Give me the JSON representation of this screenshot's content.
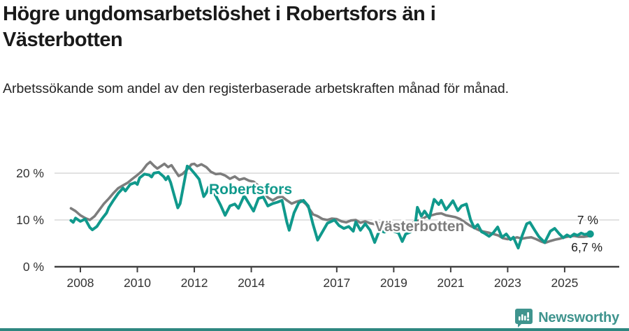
{
  "header": {
    "title": "Högre ungdomsarbetslöshet i Robertsfors än i Västerbotten",
    "subtitle": "Arbetssökande som andel av den registerbaserade arbetskraften månad för månad."
  },
  "footer": {
    "brand": "Newsworthy"
  },
  "colors": {
    "robertsfors": "#10998c",
    "vasterbotten": "#7d7d7d",
    "gridline": "#d9d9d9",
    "axis": "#404040",
    "tick_text": "#333333",
    "end_label_text": "#1a1a1a",
    "brand_teal": "#3f948e",
    "bottom_bar": "#2e8680"
  },
  "chart_data": {
    "type": "line",
    "title": "Högre ungdomsarbetslöshet i Robertsfors än i Västerbotten",
    "xlabel": "",
    "ylabel": "Arbetssökande som andel av den registerbaserade arbetskraften",
    "grid": "horizontal",
    "legend_position": "inline-labels",
    "xlim": [
      2007.5,
      2026.1
    ],
    "ylim": [
      0,
      24
    ],
    "x_ticks": [
      {
        "value": 2008,
        "label": "2008"
      },
      {
        "value": 2010,
        "label": "2010"
      },
      {
        "value": 2012,
        "label": "2012"
      },
      {
        "value": 2014,
        "label": "2014"
      },
      {
        "value": 2017,
        "label": "2017"
      },
      {
        "value": 2019,
        "label": "2019"
      },
      {
        "value": 2021,
        "label": "2021"
      },
      {
        "value": 2023,
        "label": "2023"
      },
      {
        "value": 2025,
        "label": "2025"
      }
    ],
    "y_ticks": [
      {
        "value": 0,
        "label": "0 %"
      },
      {
        "value": 10,
        "label": "10 %"
      },
      {
        "value": 20,
        "label": "20 %"
      }
    ],
    "series": [
      {
        "name": "Västerbotten",
        "color": "#7d7d7d",
        "end_label": "6,7 %",
        "end_value": 6.7,
        "end_dot": false,
        "points": [
          [
            2007.67,
            12.5
          ],
          [
            2007.83,
            11.9
          ],
          [
            2008.0,
            11.0
          ],
          [
            2008.17,
            10.4
          ],
          [
            2008.33,
            10.0
          ],
          [
            2008.5,
            10.8
          ],
          [
            2008.67,
            12.2
          ],
          [
            2008.83,
            13.5
          ],
          [
            2009.0,
            14.6
          ],
          [
            2009.17,
            15.8
          ],
          [
            2009.33,
            16.8
          ],
          [
            2009.5,
            17.4
          ],
          [
            2009.67,
            18.0
          ],
          [
            2009.83,
            18.8
          ],
          [
            2010.0,
            19.6
          ],
          [
            2010.17,
            20.5
          ],
          [
            2010.33,
            21.8
          ],
          [
            2010.45,
            22.4
          ],
          [
            2010.58,
            21.6
          ],
          [
            2010.7,
            21.0
          ],
          [
            2010.83,
            21.5
          ],
          [
            2010.95,
            22.0
          ],
          [
            2011.08,
            21.3
          ],
          [
            2011.2,
            21.7
          ],
          [
            2011.33,
            20.5
          ],
          [
            2011.45,
            19.4
          ],
          [
            2011.58,
            19.8
          ],
          [
            2011.75,
            20.8
          ],
          [
            2011.9,
            21.9
          ],
          [
            2012.0,
            22.0
          ],
          [
            2012.1,
            21.5
          ],
          [
            2012.25,
            21.9
          ],
          [
            2012.42,
            21.3
          ],
          [
            2012.58,
            20.3
          ],
          [
            2012.75,
            19.8
          ],
          [
            2012.92,
            19.9
          ],
          [
            2013.08,
            19.5
          ],
          [
            2013.25,
            18.8
          ],
          [
            2013.42,
            19.3
          ],
          [
            2013.58,
            18.6
          ],
          [
            2013.75,
            18.9
          ],
          [
            2013.92,
            18.4
          ],
          [
            2014.08,
            18.2
          ],
          [
            2014.25,
            17.3
          ],
          [
            2014.42,
            16.0
          ],
          [
            2014.58,
            14.8
          ],
          [
            2014.75,
            14.2
          ],
          [
            2014.92,
            14.8
          ],
          [
            2015.08,
            15.0
          ],
          [
            2015.25,
            14.2
          ],
          [
            2015.42,
            13.5
          ],
          [
            2015.58,
            13.9
          ],
          [
            2015.75,
            14.2
          ],
          [
            2015.92,
            13.4
          ],
          [
            2016.08,
            12.0
          ],
          [
            2016.17,
            11.2
          ],
          [
            2016.33,
            10.8
          ],
          [
            2016.5,
            10.2
          ],
          [
            2016.67,
            10.0
          ],
          [
            2016.83,
            10.3
          ],
          [
            2017.0,
            10.2
          ],
          [
            2017.17,
            9.7
          ],
          [
            2017.33,
            9.5
          ],
          [
            2017.5,
            9.9
          ],
          [
            2017.67,
            10.0
          ],
          [
            2017.83,
            9.4
          ],
          [
            2018.0,
            9.7
          ],
          [
            2018.17,
            9.3
          ],
          [
            2018.33,
            9.1
          ],
          [
            2018.5,
            9.3
          ],
          [
            2018.67,
            9.2
          ],
          [
            2018.83,
            9.4
          ],
          [
            2019.0,
            9.2
          ],
          [
            2019.17,
            9.1
          ],
          [
            2019.33,
            9.3
          ],
          [
            2019.5,
            9.2
          ],
          [
            2019.67,
            9.4
          ],
          [
            2019.83,
            9.8
          ],
          [
            2020.0,
            10.2
          ],
          [
            2020.17,
            10.8
          ],
          [
            2020.33,
            11.0
          ],
          [
            2020.5,
            11.3
          ],
          [
            2020.67,
            11.4
          ],
          [
            2020.83,
            11.0
          ],
          [
            2021.0,
            10.8
          ],
          [
            2021.17,
            10.6
          ],
          [
            2021.33,
            10.2
          ],
          [
            2021.5,
            9.5
          ],
          [
            2021.67,
            8.8
          ],
          [
            2021.83,
            8.3
          ],
          [
            2022.0,
            7.8
          ],
          [
            2022.17,
            7.5
          ],
          [
            2022.33,
            7.3
          ],
          [
            2022.5,
            7.0
          ],
          [
            2022.67,
            6.7
          ],
          [
            2022.83,
            6.1
          ],
          [
            2023.0,
            5.9
          ],
          [
            2023.17,
            6.0
          ],
          [
            2023.33,
            6.3
          ],
          [
            2023.5,
            6.0
          ],
          [
            2023.67,
            6.2
          ],
          [
            2023.83,
            6.3
          ],
          [
            2024.0,
            5.9
          ],
          [
            2024.17,
            5.4
          ],
          [
            2024.31,
            5.1
          ],
          [
            2024.5,
            5.5
          ],
          [
            2024.67,
            5.8
          ],
          [
            2024.83,
            6.0
          ],
          [
            2025.0,
            6.3
          ],
          [
            2025.17,
            6.5
          ],
          [
            2025.33,
            6.6
          ],
          [
            2025.5,
            6.4
          ],
          [
            2025.67,
            6.4
          ],
          [
            2025.8,
            6.5
          ],
          [
            2025.9,
            6.7
          ]
        ]
      },
      {
        "name": "Robertsfors",
        "color": "#10998c",
        "end_label": "7 %",
        "end_value": 7,
        "end_dot": true,
        "points": [
          [
            2007.67,
            9.9
          ],
          [
            2007.75,
            9.5
          ],
          [
            2007.83,
            10.4
          ],
          [
            2008.0,
            9.7
          ],
          [
            2008.17,
            10.2
          ],
          [
            2008.33,
            8.4
          ],
          [
            2008.42,
            7.9
          ],
          [
            2008.58,
            8.6
          ],
          [
            2008.75,
            10.2
          ],
          [
            2008.92,
            11.5
          ],
          [
            2009.0,
            12.7
          ],
          [
            2009.17,
            14.3
          ],
          [
            2009.33,
            15.7
          ],
          [
            2009.5,
            16.8
          ],
          [
            2009.58,
            16.2
          ],
          [
            2009.75,
            17.6
          ],
          [
            2009.92,
            18.0
          ],
          [
            2010.0,
            17.6
          ],
          [
            2010.08,
            19.0
          ],
          [
            2010.25,
            19.8
          ],
          [
            2010.42,
            19.6
          ],
          [
            2010.5,
            19.2
          ],
          [
            2010.58,
            20.0
          ],
          [
            2010.75,
            20.2
          ],
          [
            2010.92,
            19.3
          ],
          [
            2011.0,
            18.6
          ],
          [
            2011.08,
            19.3
          ],
          [
            2011.17,
            18.0
          ],
          [
            2011.33,
            14.5
          ],
          [
            2011.42,
            12.6
          ],
          [
            2011.5,
            13.5
          ],
          [
            2011.58,
            16.0
          ],
          [
            2011.75,
            21.5
          ],
          [
            2011.83,
            21.2
          ],
          [
            2012.0,
            20.0
          ],
          [
            2012.17,
            18.7
          ],
          [
            2012.33,
            15.0
          ],
          [
            2012.42,
            15.8
          ],
          [
            2012.5,
            17.0
          ],
          [
            2012.58,
            16.4
          ],
          [
            2012.75,
            15.2
          ],
          [
            2012.92,
            13.2
          ],
          [
            2013.08,
            11.0
          ],
          [
            2013.25,
            13.0
          ],
          [
            2013.42,
            13.4
          ],
          [
            2013.55,
            12.5
          ],
          [
            2013.75,
            15.2
          ],
          [
            2013.92,
            13.5
          ],
          [
            2014.08,
            11.9
          ],
          [
            2014.25,
            14.6
          ],
          [
            2014.42,
            14.9
          ],
          [
            2014.58,
            13.0
          ],
          [
            2014.75,
            13.5
          ],
          [
            2014.92,
            13.8
          ],
          [
            2015.08,
            14.2
          ],
          [
            2015.25,
            9.5
          ],
          [
            2015.33,
            7.8
          ],
          [
            2015.5,
            11.5
          ],
          [
            2015.67,
            13.7
          ],
          [
            2015.83,
            14.2
          ],
          [
            2016.0,
            13.0
          ],
          [
            2016.17,
            9.0
          ],
          [
            2016.33,
            5.7
          ],
          [
            2016.5,
            7.5
          ],
          [
            2016.67,
            9.3
          ],
          [
            2016.92,
            10.0
          ],
          [
            2017.08,
            8.8
          ],
          [
            2017.25,
            8.2
          ],
          [
            2017.42,
            8.6
          ],
          [
            2017.58,
            7.6
          ],
          [
            2017.67,
            9.6
          ],
          [
            2017.83,
            7.8
          ],
          [
            2018.0,
            9.2
          ],
          [
            2018.17,
            7.8
          ],
          [
            2018.33,
            5.2
          ],
          [
            2018.5,
            7.8
          ],
          [
            2018.67,
            7.4
          ],
          [
            2018.83,
            7.8
          ],
          [
            2019.0,
            7.6
          ],
          [
            2019.17,
            7.2
          ],
          [
            2019.3,
            5.4
          ],
          [
            2019.42,
            7.0
          ],
          [
            2019.58,
            7.4
          ],
          [
            2019.75,
            8.8
          ],
          [
            2019.83,
            12.7
          ],
          [
            2019.97,
            10.8
          ],
          [
            2020.08,
            11.9
          ],
          [
            2020.25,
            10.4
          ],
          [
            2020.42,
            14.4
          ],
          [
            2020.58,
            13.3
          ],
          [
            2020.67,
            14.2
          ],
          [
            2020.83,
            12.2
          ],
          [
            2020.92,
            12.8
          ],
          [
            2021.08,
            14.1
          ],
          [
            2021.25,
            12.0
          ],
          [
            2021.38,
            13.0
          ],
          [
            2021.55,
            13.4
          ],
          [
            2021.7,
            10.0
          ],
          [
            2021.83,
            8.3
          ],
          [
            2021.95,
            9.0
          ],
          [
            2022.08,
            7.5
          ],
          [
            2022.2,
            7.1
          ],
          [
            2022.35,
            6.5
          ],
          [
            2022.5,
            7.3
          ],
          [
            2022.65,
            8.5
          ],
          [
            2022.8,
            6.3
          ],
          [
            2022.95,
            7.0
          ],
          [
            2023.1,
            5.8
          ],
          [
            2023.2,
            6.3
          ],
          [
            2023.37,
            4.0
          ],
          [
            2023.5,
            6.5
          ],
          [
            2023.67,
            9.2
          ],
          [
            2023.78,
            9.5
          ],
          [
            2023.95,
            7.8
          ],
          [
            2024.1,
            6.4
          ],
          [
            2024.3,
            5.2
          ],
          [
            2024.5,
            7.6
          ],
          [
            2024.65,
            8.2
          ],
          [
            2024.8,
            7.1
          ],
          [
            2024.95,
            6.2
          ],
          [
            2025.08,
            6.8
          ],
          [
            2025.2,
            6.4
          ],
          [
            2025.33,
            7.0
          ],
          [
            2025.45,
            6.7
          ],
          [
            2025.58,
            7.2
          ],
          [
            2025.7,
            6.9
          ],
          [
            2025.83,
            7.1
          ],
          [
            2025.9,
            7.0
          ]
        ]
      }
    ]
  }
}
